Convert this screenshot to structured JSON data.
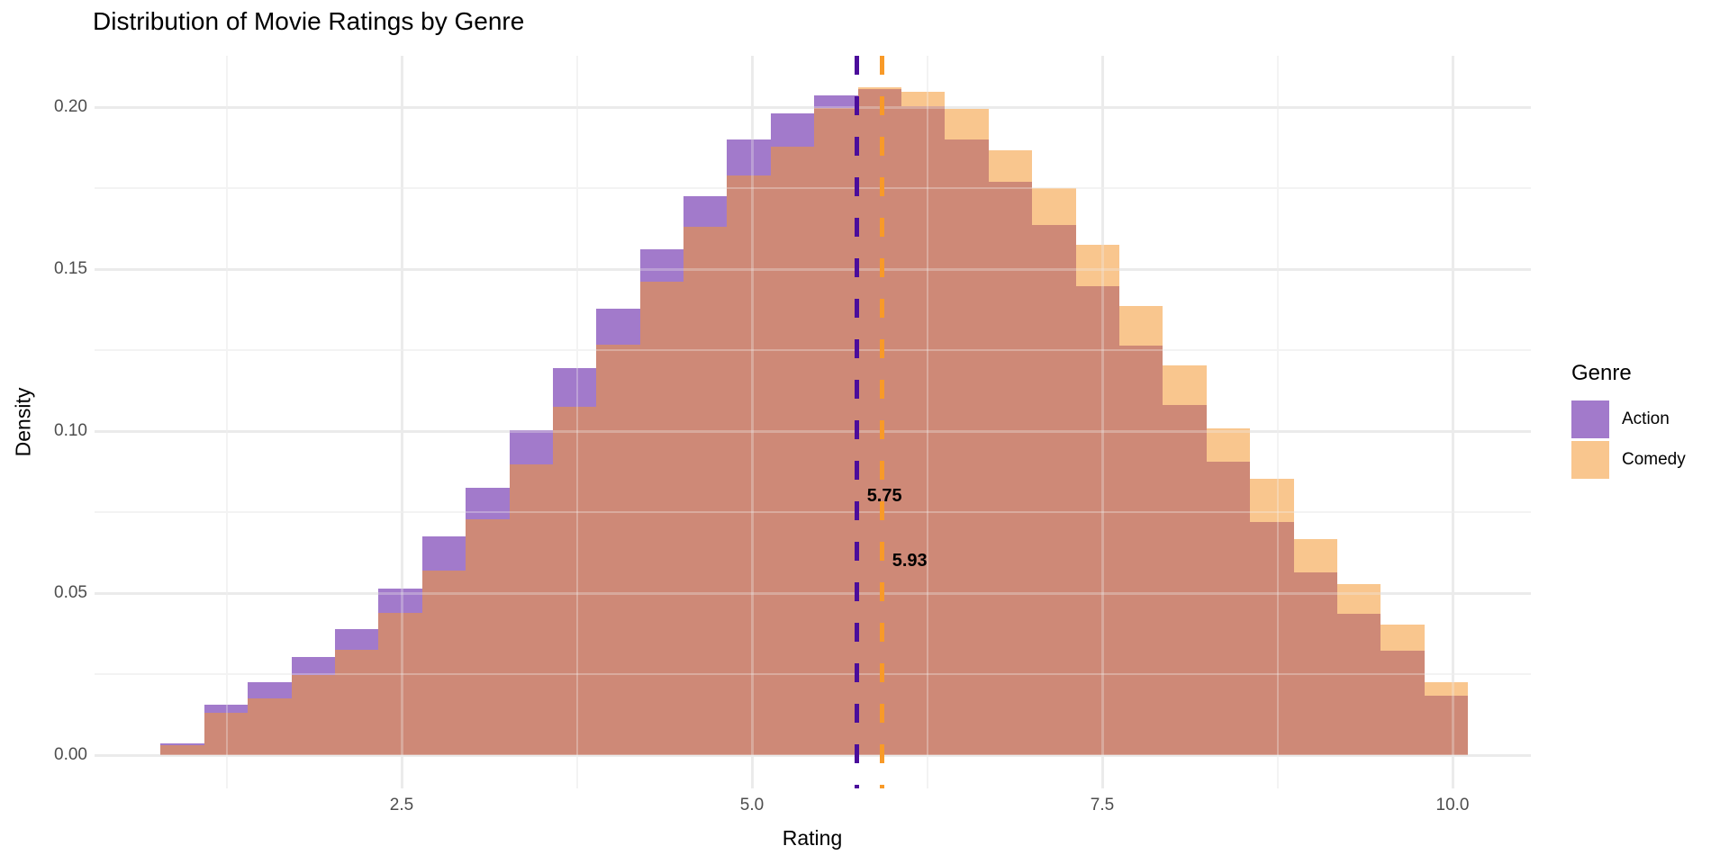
{
  "title": "Distribution of Movie Ratings by Genre",
  "xlabel": "Rating",
  "ylabel": "Density",
  "legend": {
    "title": "Genre",
    "items": [
      {
        "label": "Action",
        "color": "#a27acb"
      },
      {
        "label": "Comedy",
        "color": "#f9c68e"
      }
    ]
  },
  "colors": {
    "action_fill_visible": "#a27acb",
    "comedy_fill_visible": "#f9c68e",
    "overlap_fill": "#ce8977",
    "action_mean_line": "#4b0d9b",
    "comedy_mean_line": "#f89a28",
    "grid_major": "#ebebeb",
    "grid_minor": "#f3f3f3",
    "tick_text": "#4d4d4d",
    "background": "#ffffff"
  },
  "chart_data": {
    "type": "bar",
    "subtype": "overlaid-histogram",
    "title": "Distribution of Movie Ratings by Genre",
    "xlabel": "Rating",
    "ylabel": "Density",
    "grid": true,
    "legend_position": "right",
    "xlim": [
      0.31,
      10.56
    ],
    "ylim": [
      -0.0103,
      0.2158
    ],
    "x_ticks": {
      "values": [
        2.5,
        5.0,
        7.5,
        10.0
      ],
      "labels": [
        "2.5",
        "5.0",
        "7.5",
        "10.0"
      ]
    },
    "y_ticks": {
      "values": [
        0.0,
        0.05,
        0.1,
        0.15,
        0.2
      ],
      "labels": [
        "0.00",
        "0.05",
        "0.10",
        "0.15",
        "0.20"
      ]
    },
    "x_minor": [
      1.25,
      3.75,
      6.25,
      8.75
    ],
    "y_minor": [
      0.025,
      0.075,
      0.125,
      0.175
    ],
    "bin_start": 0.78,
    "bin_width": 0.311,
    "series": [
      {
        "name": "Action",
        "mean": 5.75,
        "mean_label": "5.75",
        "mean_label_y": 0.08,
        "densities": [
          0.0036,
          0.0155,
          0.0225,
          0.0303,
          0.039,
          0.0514,
          0.0675,
          0.0825,
          0.1003,
          0.1194,
          0.1378,
          0.156,
          0.1725,
          0.19,
          0.198,
          0.2036,
          0.2056,
          0.2003,
          0.19,
          0.177,
          0.1636,
          0.1447,
          0.1264,
          0.108,
          0.0906,
          0.0719,
          0.0564,
          0.0436,
          0.0322,
          0.0183
        ]
      },
      {
        "name": "Comedy",
        "mean": 5.93,
        "mean_label": "5.93",
        "mean_label_y": 0.06,
        "densities": [
          0.003,
          0.013,
          0.0175,
          0.0247,
          0.0325,
          0.044,
          0.057,
          0.0728,
          0.0897,
          0.1075,
          0.1267,
          0.146,
          0.163,
          0.179,
          0.1878,
          0.1997,
          0.206,
          0.2047,
          0.1994,
          0.1867,
          0.175,
          0.1575,
          0.1386,
          0.1203,
          0.1008,
          0.0853,
          0.0667,
          0.0528,
          0.0403,
          0.0225
        ]
      }
    ]
  }
}
